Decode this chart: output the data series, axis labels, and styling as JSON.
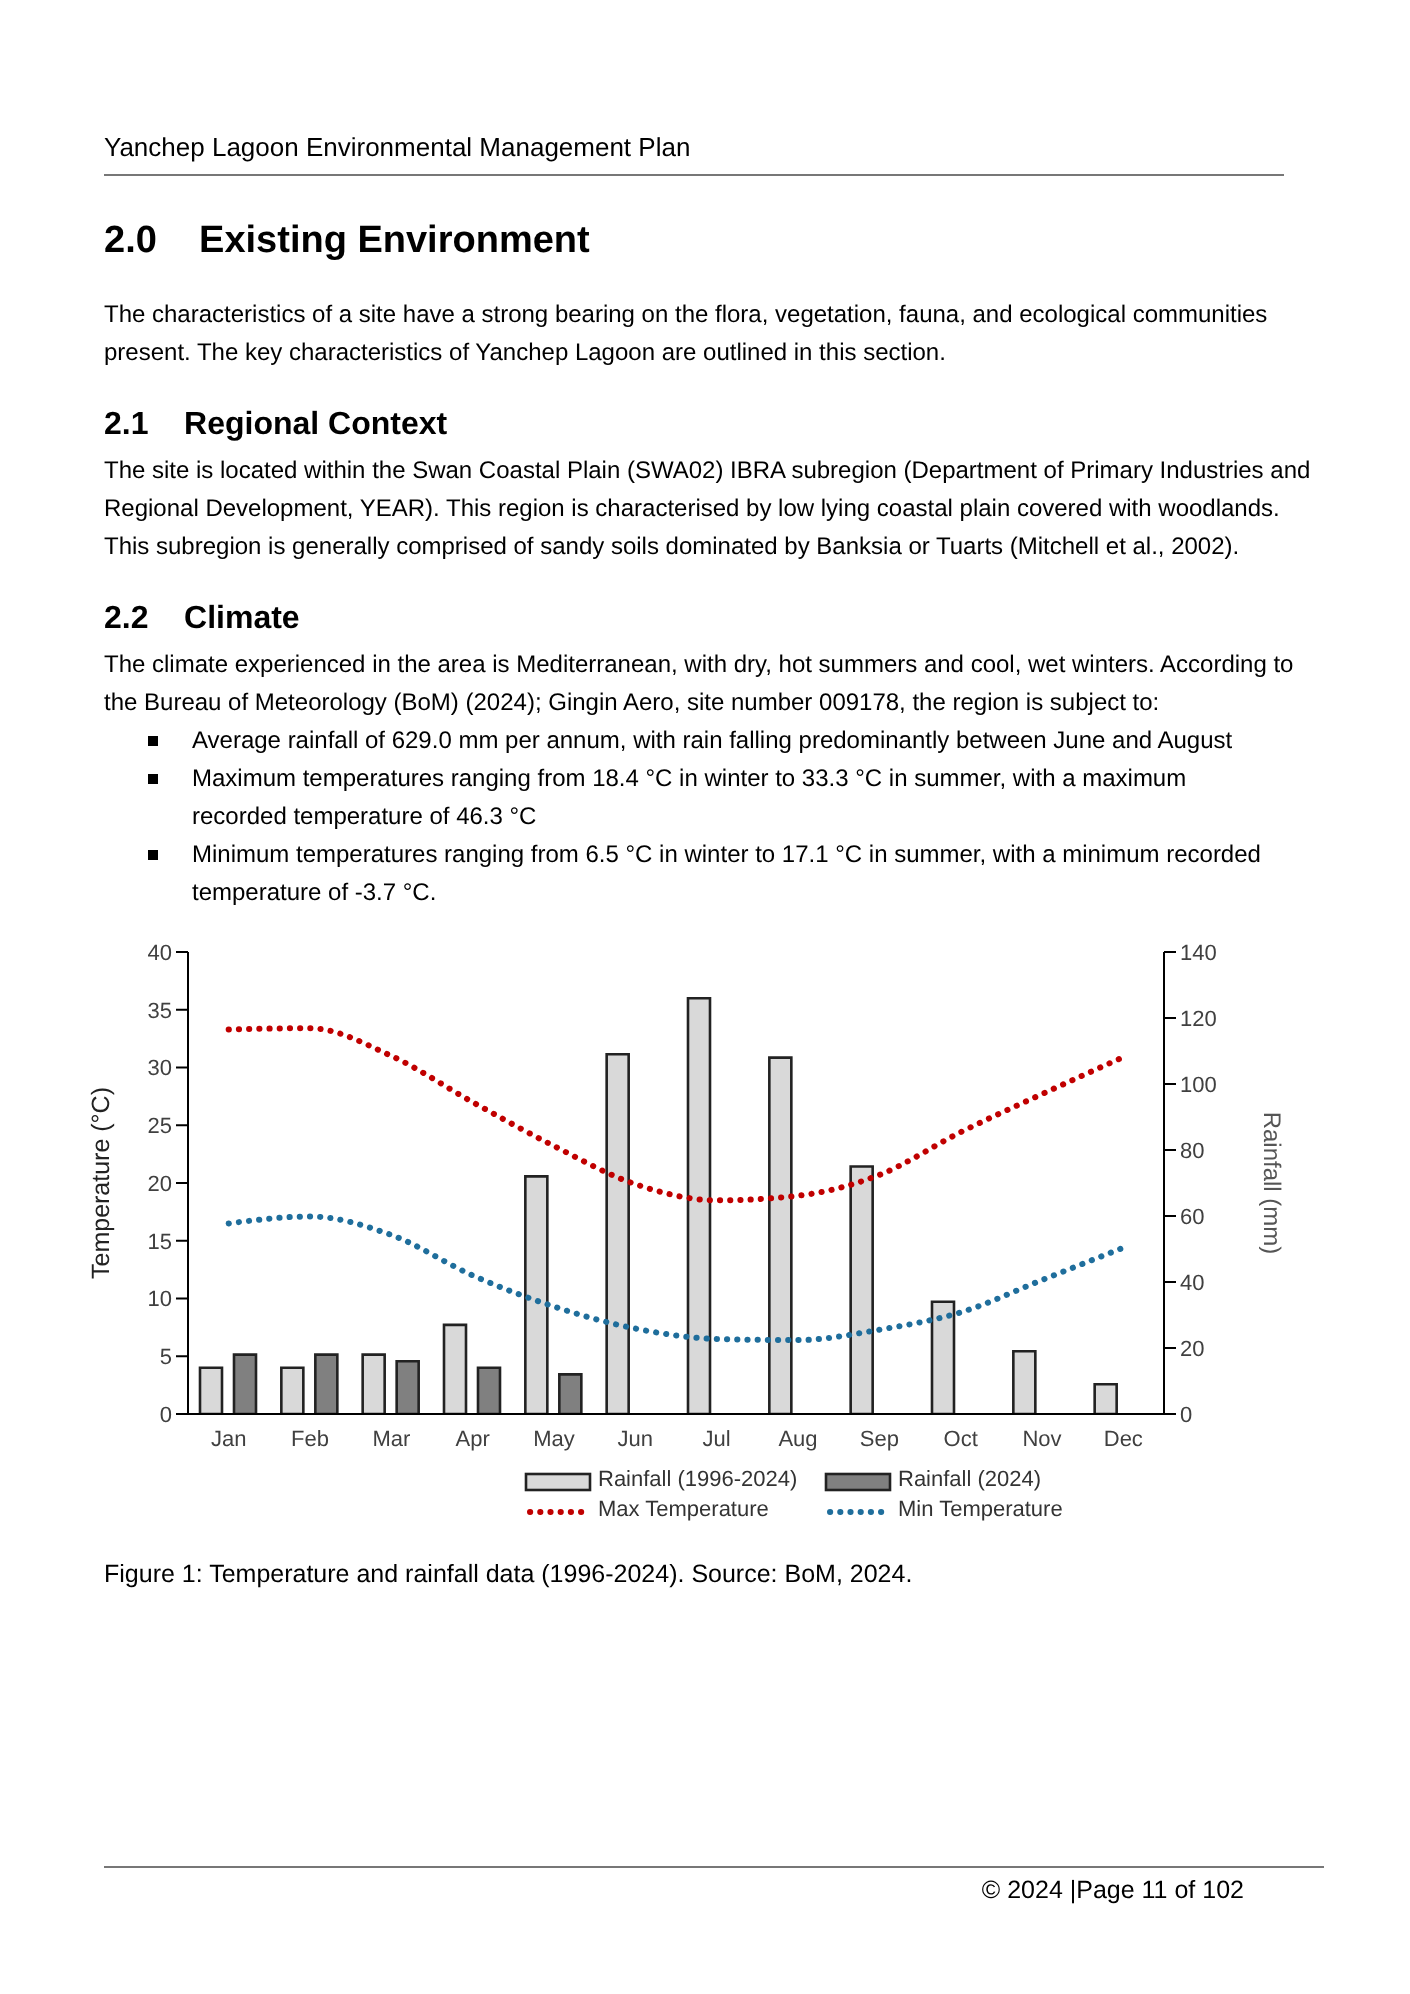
{
  "chart_data": {
    "type": "bar",
    "annotations": [
      "Yanchep Lagoon Environmental Management Plan",
      "2.0    Existing Environment",
      "The characteristics of a site have a strong bearing on the flora, vegetation, fauna, and ecological communities present. The key characteristics of Yanchep Lagoon are outlined in this section.",
      "2.1    Regional Context",
      "The site is located within the Swan Coastal Plain (SWA02) IBRA subregion (Department of Primary Industries and Regional Development, YEAR). This region is characterised by low lying coastal plain covered with woodlands. This subregion is generally comprised of sandy soils dominated by Banksia or Tuarts (Mitchell et al., 2002).",
      "2.2    Climate",
      "The climate experienced in the area is Mediterranean, with dry, hot summers and cool, wet winters. According to the Bureau of Meteorology (BoM) (2024); Gingin Aero, site number 009178, the region is subject to:",
      "Average rainfall of 629.0 mm per annum, with rain falling predominantly between June and August",
      "Maximum temperatures ranging from 18.4 °C in winter to 33.3 °C in summer, with a maximum recorded temperature of 46.3 °C",
      "Minimum temperatures ranging from 6.5 °C in winter to 17.1 °C in summer, with a minimum recorded temperature of -3.7 °C.",
      "Figure 1: Temperature and rainfall data (1996-2024). Source: BoM, 2024.",
      "© 2024 |Page 11 of 102"
    ],
    "ylabel": "Temperature (°C)",
    "y2label": "Rainfall (mm)",
    "categories": [
      "Jan",
      "Feb",
      "Mar",
      "Apr",
      "May",
      "Jun",
      "Jul",
      "Aug",
      "Sep",
      "Oct",
      "Nov",
      "Dec"
    ],
    "ylim": [
      0,
      40
    ],
    "yticks": [
      0,
      5,
      10,
      15,
      20,
      25,
      30,
      35,
      40
    ],
    "y2lim": [
      0,
      140
    ],
    "y2ticks": [
      0,
      20,
      40,
      60,
      80,
      100,
      120,
      140
    ],
    "legend": "bottom",
    "grid": false,
    "marker": "none",
    "series": [
      {
        "name": "Rainfall (1996-2024)",
        "axis": "y2",
        "color": "#d9d9d9",
        "values": [
          14,
          14,
          18,
          27,
          72,
          109,
          126,
          108,
          75,
          34,
          19,
          9
        ]
      },
      {
        "name": "Rainfall (2024)",
        "axis": "y2",
        "color": "#808080",
        "values": [
          18,
          18,
          16,
          14,
          12,
          null,
          null,
          null,
          null,
          null,
          null,
          null
        ]
      },
      {
        "name": "Max Temperature",
        "type": "line",
        "line_style": "dotted",
        "color": "#c00000",
        "values": [
          33.3,
          33.4,
          31,
          27,
          23.2,
          19.9,
          18.5,
          18.9,
          20.7,
          24.4,
          27.7,
          30.9
        ]
      },
      {
        "name": "Min Temperature",
        "type": "line",
        "line_style": "dotted",
        "color": "#1f6e9c",
        "values": [
          16.5,
          17.1,
          15.5,
          12,
          9.3,
          7.4,
          6.5,
          6.4,
          7.3,
          8.8,
          11.6,
          14.4
        ]
      }
    ]
  }
}
